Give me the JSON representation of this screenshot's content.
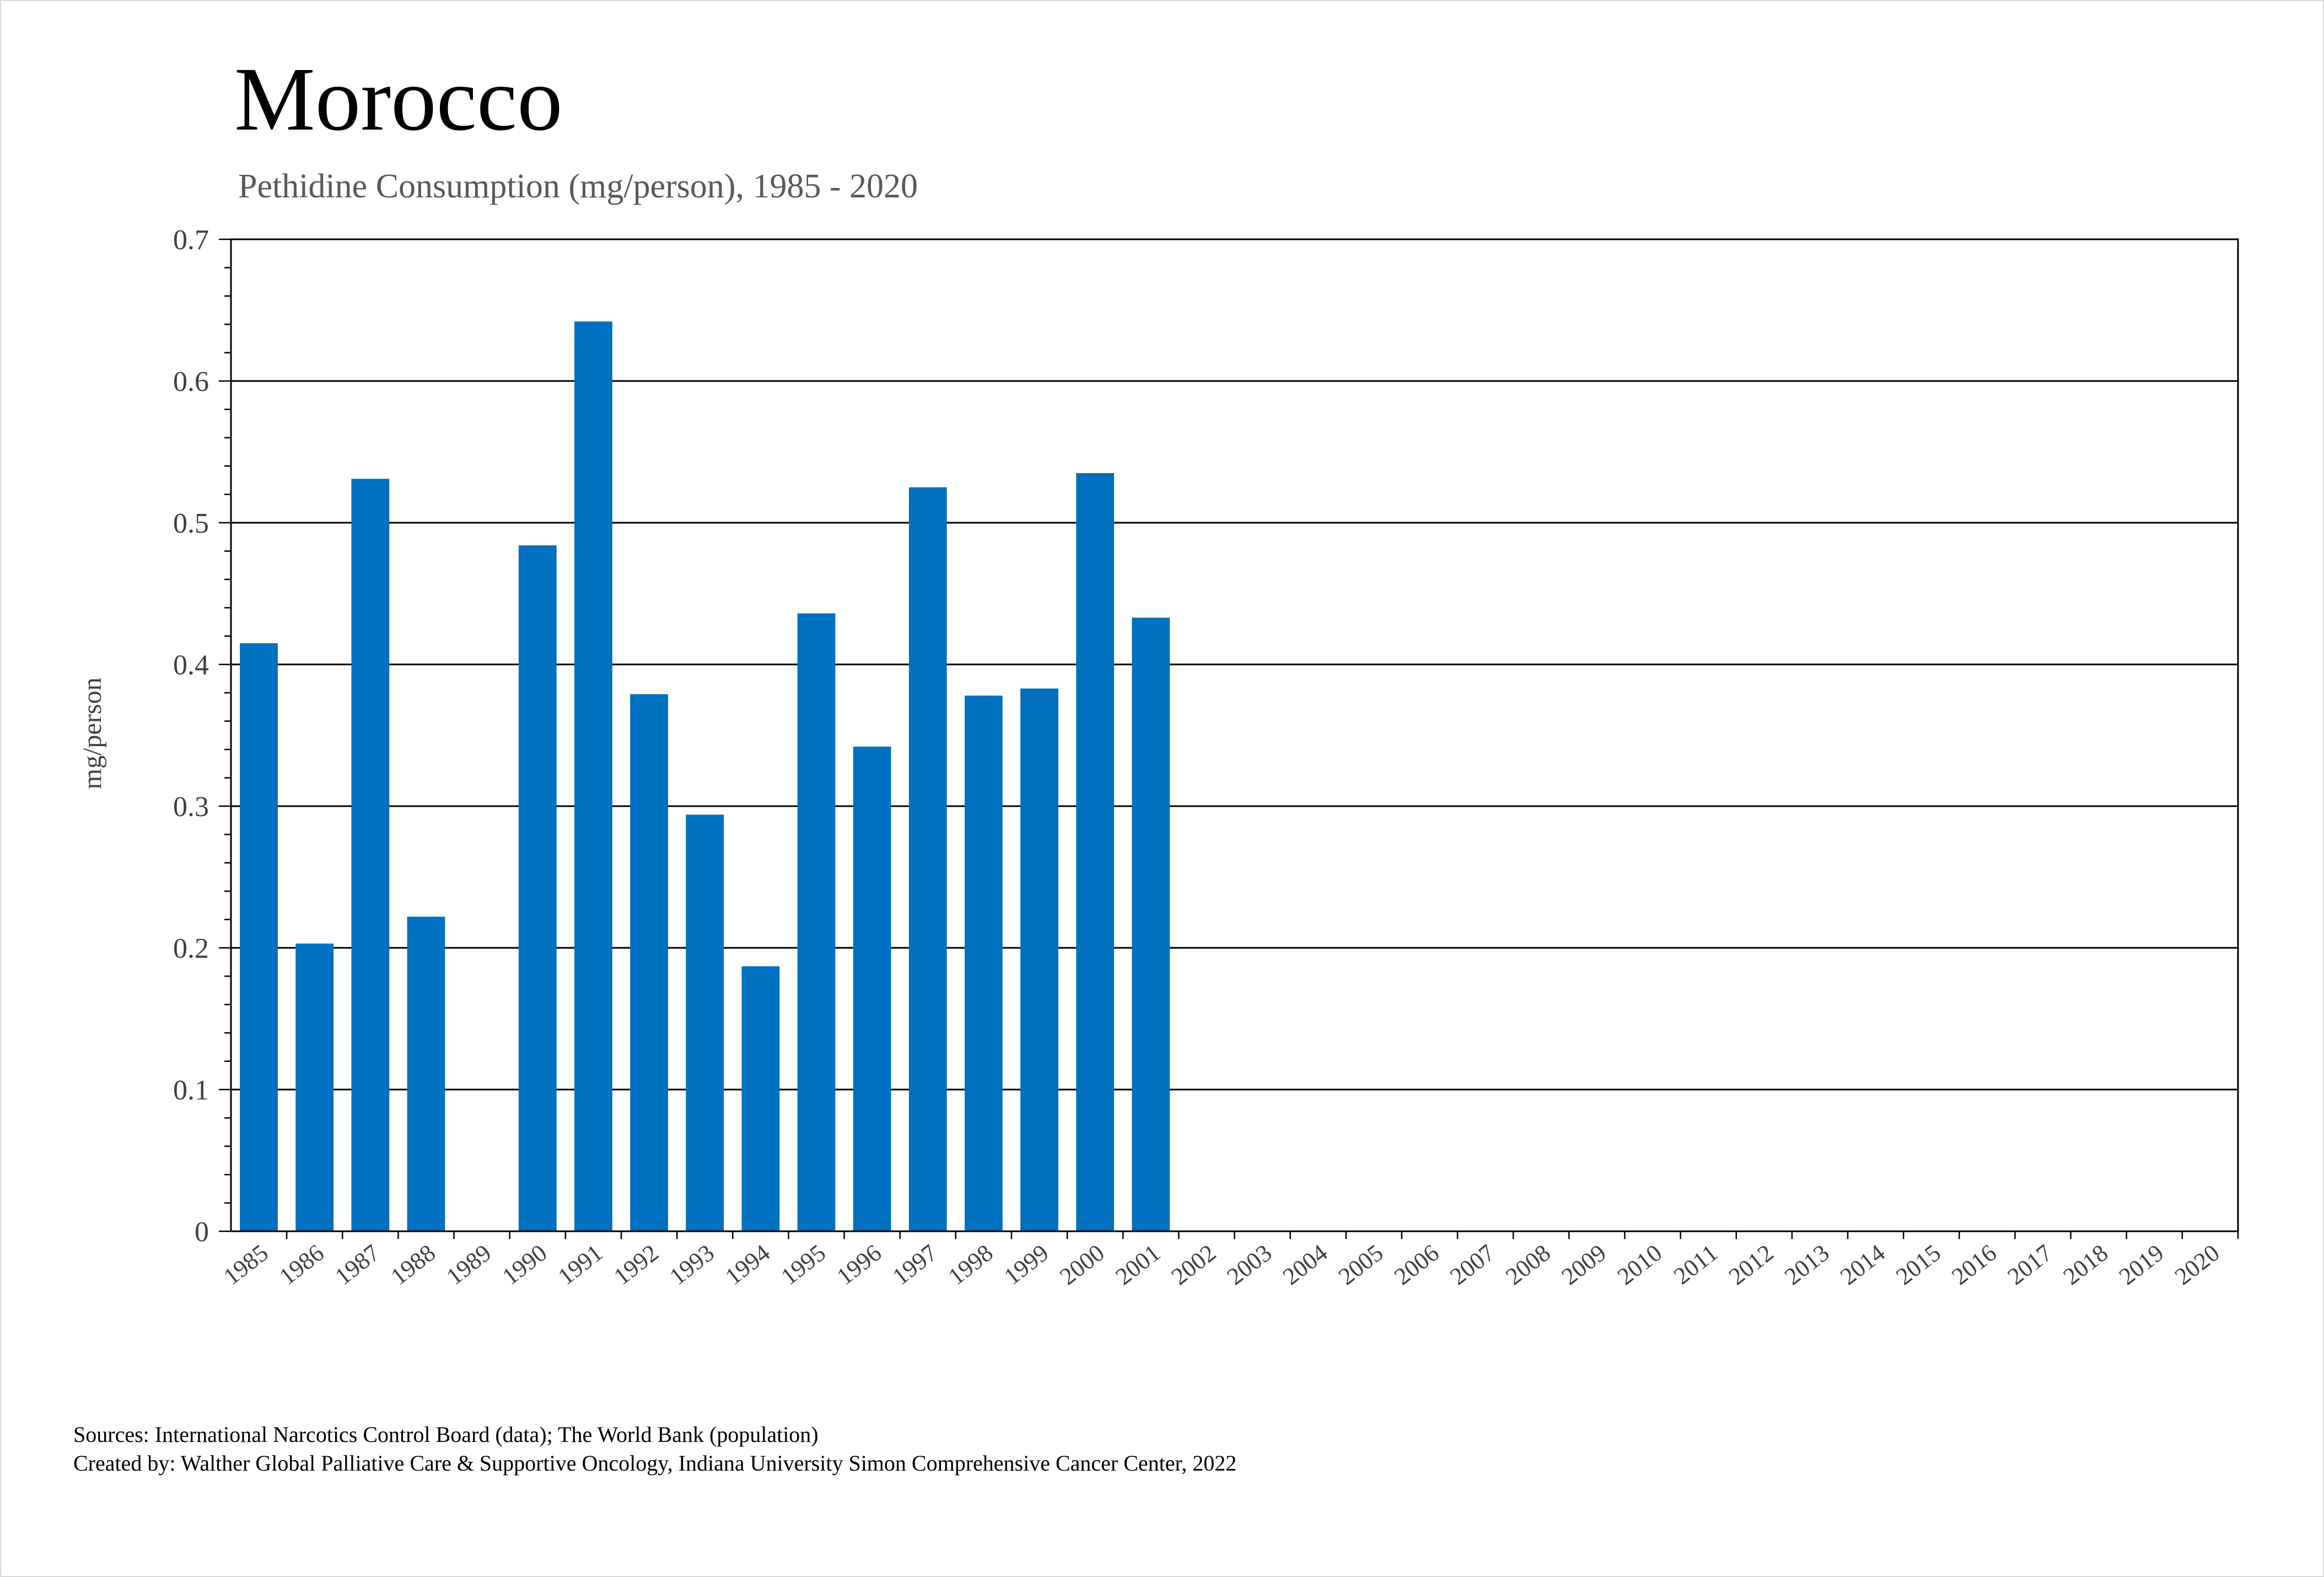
{
  "colors": {
    "bar": "#0070c0",
    "grid": "#000000",
    "text": "#404040"
  },
  "chart_data": {
    "type": "bar",
    "title": "Morocco",
    "subtitle": "Pethidine Consumption (mg/person), 1985 - 2020",
    "xlabel": "",
    "ylabel": "mg/person",
    "ylim": [
      0,
      0.7
    ],
    "yticks": [
      "0",
      "0.1",
      "0.2",
      "0.3",
      "0.4",
      "0.5",
      "0.6",
      "0.7"
    ],
    "grid": true,
    "categories": [
      "1985",
      "1986",
      "1987",
      "1988",
      "1989",
      "1990",
      "1991",
      "1992",
      "1993",
      "1994",
      "1995",
      "1996",
      "1997",
      "1998",
      "1999",
      "2000",
      "2001",
      "2002",
      "2003",
      "2004",
      "2005",
      "2006",
      "2007",
      "2008",
      "2009",
      "2010",
      "2011",
      "2012",
      "2013",
      "2014",
      "2015",
      "2016",
      "2017",
      "2018",
      "2019",
      "2020"
    ],
    "series": [
      {
        "values": [
          0.415,
          0.203,
          0.531,
          0.222,
          null,
          0.484,
          0.642,
          0.379,
          0.294,
          0.187,
          0.436,
          0.342,
          0.525,
          0.378,
          0.383,
          0.535,
          0.433,
          null,
          null,
          null,
          null,
          null,
          null,
          null,
          null,
          null,
          null,
          null,
          null,
          null,
          null,
          null,
          null,
          null,
          null,
          null
        ]
      }
    ]
  },
  "footer": {
    "sources": "Sources: International Narcotics Control Board (data); The World Bank (population)",
    "created_by": "Created by: Walther Global Palliative Care & Supportive Oncology, Indiana University Simon Comprehensive Cancer Center, 2022"
  }
}
